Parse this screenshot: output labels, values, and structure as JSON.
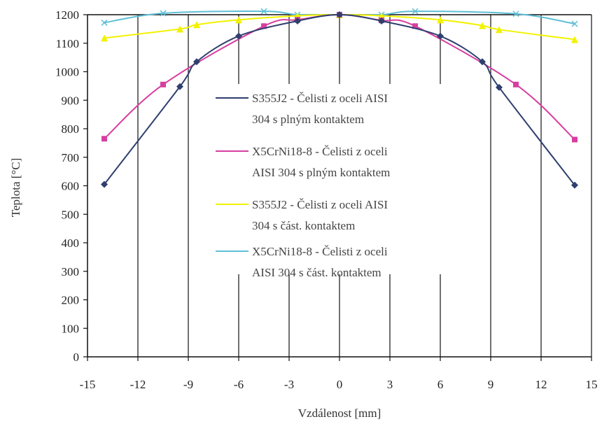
{
  "chart_data": {
    "type": "line",
    "xlabel": "Vzdálenost [mm]",
    "ylabel": "Teplota [°C]",
    "xlim": [
      -15,
      15
    ],
    "ylim": [
      0,
      1200
    ],
    "x_ticks": [
      -15,
      -12,
      -9,
      -6,
      -3,
      0,
      3,
      6,
      9,
      12,
      15
    ],
    "y_ticks": [
      0,
      100,
      200,
      300,
      400,
      500,
      600,
      700,
      800,
      900,
      1000,
      1100,
      1200
    ],
    "grid": "vertical gridlines",
    "legend_position": "center",
    "series": [
      {
        "name": "S355J2 - Čelisti z oceli AISI 304 s plným kontaktem",
        "legend_lines": [
          "S355J2 - Čelisti z oceli AISI",
          "304 s plným kontaktem"
        ],
        "color": "#2f3f6e",
        "marker": "diamond",
        "points": [
          [
            -14,
            605
          ],
          [
            -9.5,
            948
          ],
          [
            -8.5,
            1035
          ],
          [
            -6,
            1125
          ],
          [
            -2.5,
            1178
          ],
          [
            0,
            1200
          ],
          [
            2.5,
            1178
          ],
          [
            6,
            1125
          ],
          [
            8.5,
            1035
          ],
          [
            9.5,
            945
          ],
          [
            14,
            602
          ]
        ]
      },
      {
        "name": "X5CrNi18-8 - Čelisti z oceli AISI 304 s plným kontaktem",
        "legend_lines": [
          "X5CrNi18-8 - Čelisti z oceli",
          "AISI 304 s plným kontaktem"
        ],
        "color": "#d63fa0",
        "marker": "square",
        "points": [
          [
            -14,
            765
          ],
          [
            -10.5,
            955
          ],
          [
            -4.5,
            1160
          ],
          [
            -2.5,
            1182
          ],
          [
            0,
            1200
          ],
          [
            2.5,
            1180
          ],
          [
            4.5,
            1160
          ],
          [
            10.5,
            955
          ],
          [
            14,
            762
          ]
        ]
      },
      {
        "name": "S355J2 - Čelisti z oceli AISI 304 s část. kontaktem",
        "legend_lines": [
          "S355J2 - Čelisti z oceli AISI",
          "304 s část. kontaktem"
        ],
        "color": "#f2f200",
        "marker": "triangle",
        "points": [
          [
            -14,
            1118
          ],
          [
            -9.5,
            1150
          ],
          [
            -8.5,
            1165
          ],
          [
            -6,
            1182
          ],
          [
            -2.5,
            1196
          ],
          [
            0,
            1200
          ],
          [
            2.5,
            1196
          ],
          [
            6,
            1182
          ],
          [
            8.5,
            1162
          ],
          [
            9.5,
            1148
          ],
          [
            14,
            1113
          ]
        ]
      },
      {
        "name": "X5CrNi18-8 - Čelisti z oceli AISI 304 s část. kontaktem",
        "legend_lines": [
          "X5CrNi18-8 - Čelisti z oceli",
          "AISI 304 s část. kontaktem"
        ],
        "color": "#5fbfd6",
        "marker": "x",
        "points": [
          [
            -14,
            1172
          ],
          [
            -10.5,
            1205
          ],
          [
            -4.5,
            1212
          ],
          [
            -2.5,
            1200
          ],
          [
            0,
            1200
          ],
          [
            2.5,
            1200
          ],
          [
            4.5,
            1212
          ],
          [
            10.5,
            1203
          ],
          [
            14,
            1168
          ]
        ]
      }
    ]
  }
}
